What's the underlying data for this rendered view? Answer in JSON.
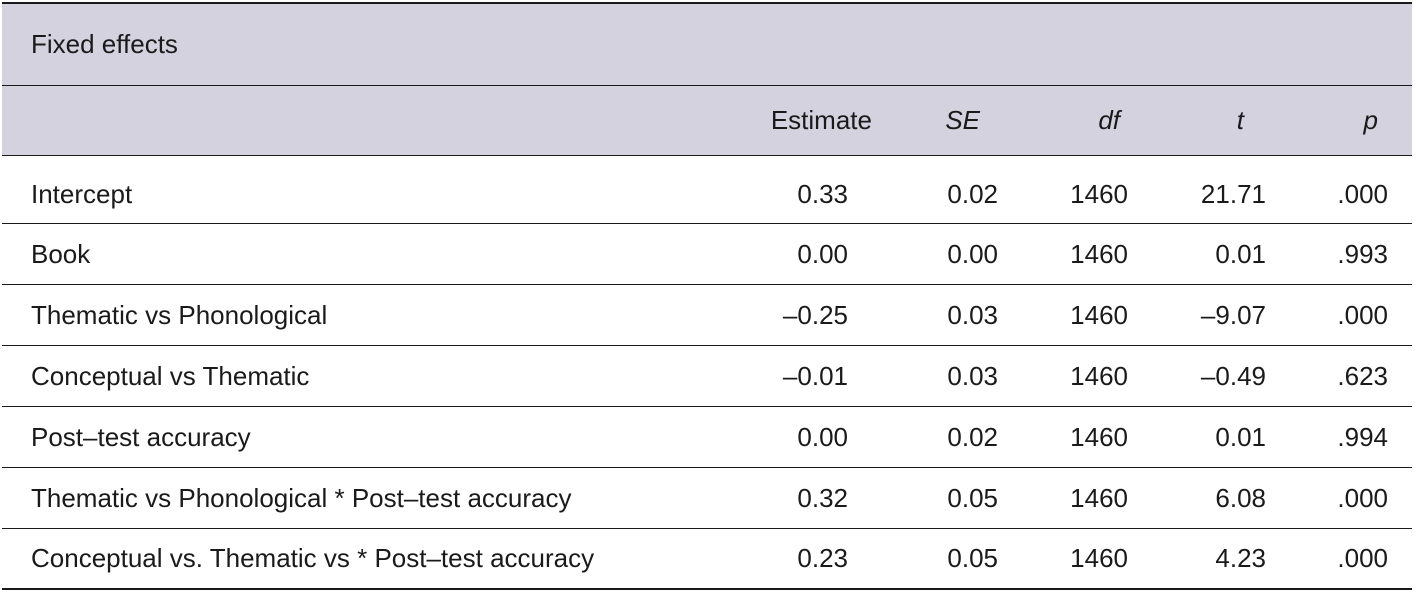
{
  "table": {
    "caption": "Fixed effects",
    "columns": {
      "estimate": "Estimate",
      "se": "SE",
      "df": "df",
      "t": "t",
      "p": "p"
    },
    "rows": [
      {
        "label": "Intercept",
        "estimate": "0.33",
        "se": "0.02",
        "df": "1460",
        "t": "21.71",
        "p": ".000"
      },
      {
        "label": "Book",
        "estimate": "0.00",
        "se": "0.00",
        "df": "1460",
        "t": "0.01",
        "p": ".993"
      },
      {
        "label": "Thematic vs Phonological",
        "estimate": "–0.25",
        "se": "0.03",
        "df": "1460",
        "t": "–9.07",
        "p": ".000"
      },
      {
        "label": "Conceptual vs Thematic",
        "estimate": "–0.01",
        "se": "0.03",
        "df": "1460",
        "t": "–0.49",
        "p": ".623"
      },
      {
        "label": "Post–test accuracy",
        "estimate": "0.00",
        "se": "0.02",
        "df": "1460",
        "t": "0.01",
        "p": ".994"
      },
      {
        "label": "Thematic vs Phonological * Post–test accuracy",
        "estimate": "0.32",
        "se": "0.05",
        "df": "1460",
        "t": "6.08",
        "p": ".000"
      },
      {
        "label": "Conceptual vs. Thematic vs * Post–test accuracy",
        "estimate": "0.23",
        "se": "0.05",
        "df": "1460",
        "t": "4.23",
        "p": ".000"
      }
    ]
  },
  "colors": {
    "header_background": "#d5d2df",
    "rule": "#1a1a1a"
  }
}
